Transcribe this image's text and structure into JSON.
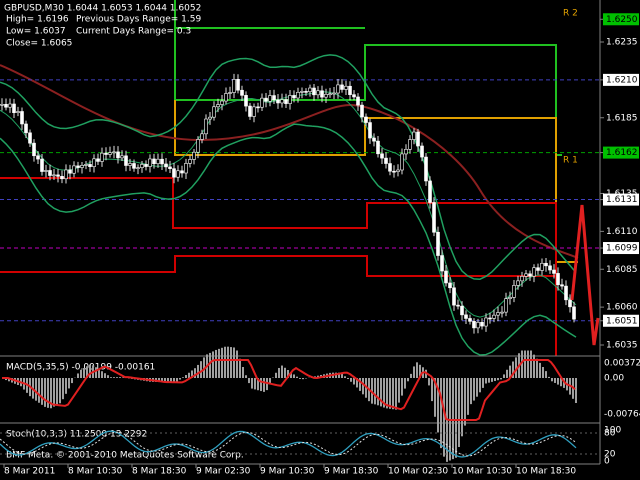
{
  "header": {
    "symbol": "GBPUSD,M30  1.6044 1.6053 1.6044 1.6052",
    "high": "High= 1.6196",
    "previous_range": "Previous Days Range= 1.59",
    "low": "Low= 1.6037",
    "current_range": "Current Days Range= 0.3",
    "close": "Close= 1.6065"
  },
  "level_labels": {
    "r2": "R 2",
    "r1": "R 1"
  },
  "price_axis": [
    {
      "label": "1.6250",
      "box": "#00c000"
    },
    {
      "label": "1.6235"
    },
    {
      "label": "1.6210",
      "box": "#ffffff",
      "line": "#4040c0"
    },
    {
      "label": "1.6185"
    },
    {
      "label": "1.6162",
      "box": "#00c000",
      "line": "#00a000"
    },
    {
      "label": "1.6135"
    },
    {
      "label": "1.6131",
      "box": "#ffffff",
      "line": "#4040c0"
    },
    {
      "label": "1.6110"
    },
    {
      "label": "1.6099",
      "box": "#ffffff",
      "line": "#c000c0"
    },
    {
      "label": "1.6085"
    },
    {
      "label": "1.6060"
    },
    {
      "label": "1.6051",
      "box": "#ffffff",
      "line": "#4040c0"
    },
    {
      "label": "1.6035"
    }
  ],
  "macd": {
    "title": "MACD(5,35,5) -0.00199 -0.00161",
    "axis": [
      "0.00372",
      "0.00",
      "-0.00764"
    ]
  },
  "stoch": {
    "title": "Stoch(10,3,3) 11.2500 13.2292",
    "axis": [
      "100",
      "80",
      "20",
      "0"
    ]
  },
  "time_axis": [
    "8 Mar 2011",
    "8 Mar 10:30",
    "8 Mar 18:30",
    "9 Mar 02:30",
    "9 Mar 10:30",
    "9 Mar 18:30",
    "10 Mar 02:30",
    "10 Mar 10:30",
    "10 Mar 18:30"
  ],
  "copyright": "BMF Meta. © 2001-2010 MetaQuotes Software Corp."
}
